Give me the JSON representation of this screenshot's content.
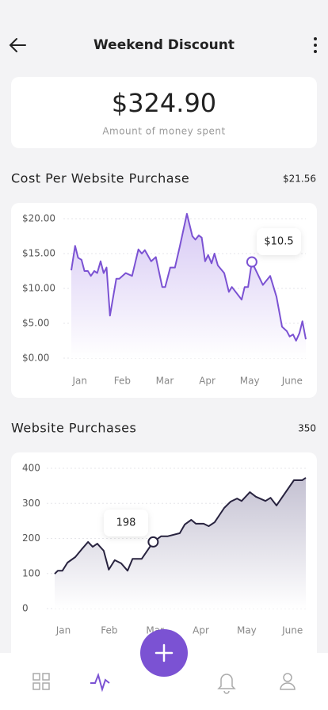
{
  "header": {
    "title": "Weekend Discount"
  },
  "summary": {
    "amount": "$324.90",
    "caption": "Amount of money spent"
  },
  "chart_data": [
    {
      "type": "line",
      "title": "Cost Per Website Purchase",
      "summary": "$21.56",
      "x": [
        -0.2,
        -0.11,
        -0.04,
        0.04,
        0.11,
        0.19,
        0.26,
        0.34,
        0.41,
        0.49,
        0.56,
        0.63,
        0.71,
        0.86,
        0.93,
        1.08,
        1.23,
        1.38,
        1.46,
        1.53,
        1.68,
        1.79,
        1.94,
        2.01,
        2.13,
        2.24,
        2.35,
        2.52,
        2.65,
        2.72,
        2.8,
        2.87,
        2.95,
        3.02,
        3.1,
        3.17,
        3.25,
        3.4,
        3.51,
        3.58,
        3.81,
        3.88,
        3.96,
        4.05,
        4.31,
        4.48,
        4.63,
        4.76,
        4.87,
        4.94,
        5.02,
        5.09,
        5.17,
        5.24,
        5.32
      ],
      "values": [
        12.6,
        16.1,
        14.4,
        14.1,
        12.5,
        12.5,
        11.8,
        12.5,
        12.2,
        13.9,
        12.2,
        13.0,
        6.1,
        11.4,
        11.4,
        12.2,
        11.8,
        15.6,
        15.0,
        15.5,
        13.9,
        14.5,
        10.2,
        10.2,
        13.0,
        13.0,
        15.9,
        20.7,
        17.5,
        17.0,
        17.6,
        17.3,
        13.9,
        14.8,
        13.6,
        15.0,
        13.3,
        12.2,
        9.5,
        10.2,
        8.4,
        10.2,
        10.2,
        13.8,
        10.5,
        11.8,
        8.8,
        4.5,
        3.9,
        3.1,
        3.4,
        2.5,
        3.6,
        5.3,
        2.7
      ],
      "xlim": [
        -0.2,
        5.32
      ],
      "xticks": [
        {
          "value": 0,
          "label": "Jan"
        },
        {
          "value": 1,
          "label": "Feb"
        },
        {
          "value": 2,
          "label": "Mar"
        },
        {
          "value": 3,
          "label": "Apr"
        },
        {
          "value": 4,
          "label": "May"
        },
        {
          "value": 5,
          "label": "June"
        }
      ],
      "ylim": [
        0,
        20
      ],
      "yticks": [
        {
          "value": 0,
          "label": "$0.00"
        },
        {
          "value": 5,
          "label": "$5.00"
        },
        {
          "value": 10,
          "label": "$10.00"
        },
        {
          "value": 15,
          "label": "$15.00"
        },
        {
          "value": 20,
          "label": "$20.00"
        }
      ],
      "color": "#7b52d3",
      "area_color": "#d6c8f4",
      "grid": true,
      "annotation": "$10.5"
    },
    {
      "type": "line",
      "title": "Website Purchases",
      "summary": "350",
      "x": [
        -0.19,
        -0.12,
        -0.02,
        0.09,
        0.26,
        0.4,
        0.54,
        0.64,
        0.74,
        0.88,
        0.99,
        1.12,
        1.26,
        1.4,
        1.51,
        1.71,
        1.96,
        2.13,
        2.27,
        2.54,
        2.65,
        2.79,
        2.89,
        3.06,
        3.17,
        3.3,
        3.51,
        3.65,
        3.79,
        3.89,
        4.07,
        4.2,
        4.41,
        4.52,
        4.65,
        5.03,
        5.21,
        5.29
      ],
      "values": [
        99,
        108,
        108,
        131,
        147,
        169,
        190,
        176,
        185,
        165,
        111,
        138,
        129,
        108,
        142,
        142,
        190,
        206,
        206,
        215,
        240,
        253,
        242,
        242,
        235,
        246,
        287,
        305,
        314,
        307,
        332,
        319,
        307,
        316,
        294,
        366,
        366,
        373
      ],
      "xlim": [
        -0.19,
        5.29
      ],
      "xticks": [
        {
          "value": 0,
          "label": "Jan"
        },
        {
          "value": 1,
          "label": "Feb"
        },
        {
          "value": 2,
          "label": "Mar"
        },
        {
          "value": 3,
          "label": "Apr"
        },
        {
          "value": 4,
          "label": "May"
        },
        {
          "value": 5,
          "label": "June"
        }
      ],
      "ylim": [
        0,
        400
      ],
      "yticks": [
        0,
        100,
        200,
        300,
        400
      ],
      "color": "#28233f",
      "area_color": "#c4c1d2",
      "grid": true,
      "annotation": "198"
    }
  ]
}
